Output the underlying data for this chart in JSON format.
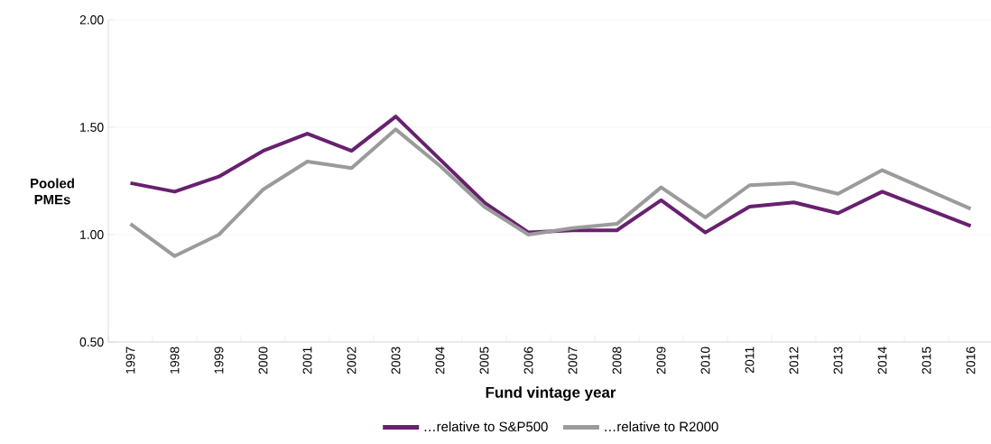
{
  "chart_data": {
    "type": "line",
    "categories": [
      "1997",
      "1998",
      "1999",
      "2000",
      "2001",
      "2002",
      "2003",
      "2004",
      "2005",
      "2006",
      "2007",
      "2008",
      "2009",
      "2010",
      "2011",
      "2012",
      "2013",
      "2014",
      "2015",
      "2016"
    ],
    "series": [
      {
        "name": "…relative to S&P500",
        "color": "#68206f",
        "values": [
          1.24,
          1.2,
          1.27,
          1.39,
          1.47,
          1.39,
          1.55,
          1.35,
          1.15,
          1.01,
          1.02,
          1.02,
          1.16,
          1.01,
          1.13,
          1.15,
          1.1,
          1.2,
          1.12,
          1.04
        ]
      },
      {
        "name": "…relative to R2000",
        "color": "#9b9b9b",
        "values": [
          1.05,
          0.9,
          1.0,
          1.21,
          1.34,
          1.31,
          1.49,
          1.32,
          1.13,
          1.0,
          1.03,
          1.05,
          1.22,
          1.08,
          1.23,
          1.24,
          1.19,
          1.3,
          1.21,
          1.12
        ]
      }
    ],
    "xlabel": "Fund vintage year",
    "ylabel": "Pooled PMEs",
    "ylim": [
      0.5,
      2.0
    ],
    "yticks": [
      {
        "value": 0.5,
        "label": "0.50"
      },
      {
        "value": 1.0,
        "label": "1.00"
      },
      {
        "value": 1.5,
        "label": "1.50"
      },
      {
        "value": 2.0,
        "label": "2.00"
      }
    ],
    "grid": "y",
    "legend": "bottom",
    "marker": "none",
    "line_style": "solid"
  }
}
